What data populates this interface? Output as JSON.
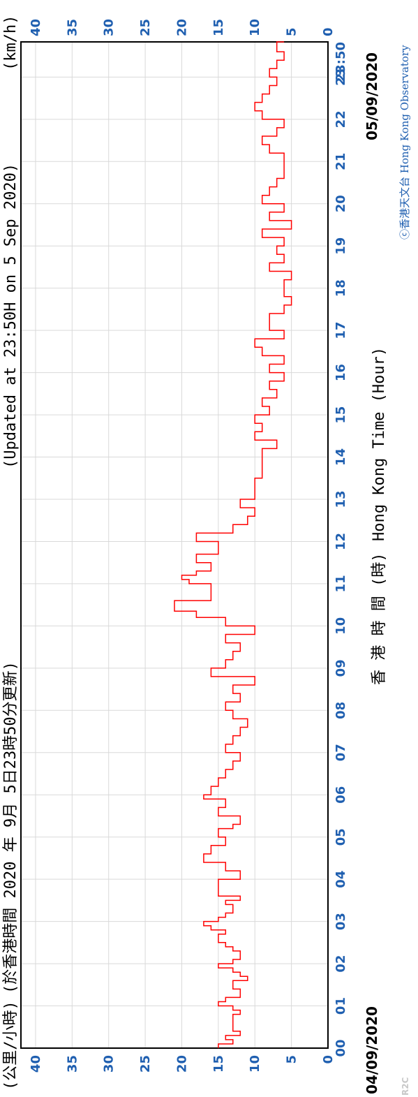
{
  "colors": {
    "accent": "#1f5fb0",
    "series": "#ff0000",
    "grid": "#d9d9d9",
    "frame": "#000000"
  },
  "header": {
    "left": "(公里/小時)",
    "middle": "(於香港時間 2020 年 9月 5日23時50分更新)",
    "right": "(Updated at 23:50H on 5 Sep 2020)",
    "unit": "(km/h)"
  },
  "footer": {
    "start_date": "04/09/2020",
    "end_date": "05/09/2020",
    "xlabel_zh": "香 港 時 間 (時)",
    "xlabel_en": "Hong Kong Time (Hour)",
    "copyright": "ⓒ香港天文台 Hong Kong Observatory",
    "corner_tag": "R2C"
  },
  "chart_data": {
    "type": "line",
    "title": "",
    "xlabel": "香 港 時 間 (時) Hong Kong Time (Hour)",
    "ylabel": "(公里/小時) (km/h)",
    "x_tick_labels": [
      "00",
      "01",
      "02",
      "03",
      "04",
      "05",
      "06",
      "07",
      "08",
      "09",
      "10",
      "11",
      "12",
      "13",
      "14",
      "15",
      "16",
      "17",
      "18",
      "19",
      "20",
      "21",
      "22",
      "23",
      "23:50"
    ],
    "y_tick_labels": [
      "0",
      "5",
      "10",
      "15",
      "20",
      "25",
      "30",
      "35",
      "40"
    ],
    "xlim": [
      0,
      23.833
    ],
    "ylim": [
      0,
      42
    ],
    "grid": true,
    "series": [
      {
        "x": [
          0.0,
          0.1,
          0.2,
          0.3,
          0.4,
          0.5,
          0.6,
          0.7,
          0.8,
          0.9,
          1.0,
          1.1,
          1.2,
          1.3,
          1.4,
          1.5,
          1.6,
          1.7,
          1.8,
          1.9,
          2.0,
          2.1,
          2.2,
          2.3,
          2.4,
          2.5,
          2.6,
          2.7,
          2.8,
          2.9,
          3.0,
          3.1,
          3.2,
          3.3,
          3.4,
          3.5,
          3.6,
          3.8,
          4.0,
          4.2,
          4.4,
          4.6,
          4.8,
          5.0,
          5.2,
          5.3,
          5.5,
          5.7,
          5.9,
          6.0,
          6.2,
          6.4,
          6.6,
          6.8,
          7.0,
          7.2,
          7.4,
          7.6,
          7.8,
          8.0,
          8.2,
          8.4,
          8.6,
          8.8,
          9.0,
          9.2,
          9.4,
          9.6,
          9.8,
          10.0,
          10.2,
          10.35,
          10.6,
          10.8,
          11.0,
          11.1,
          11.2,
          11.3,
          11.5,
          11.7,
          12.0,
          12.2,
          12.4,
          12.6,
          12.8,
          13.0,
          13.2,
          13.5,
          13.8,
          14.0,
          14.2,
          14.4,
          14.6,
          14.8,
          15.0,
          15.2,
          15.4,
          15.6,
          15.8,
          16.0,
          16.2,
          16.4,
          16.6,
          16.8,
          17.0,
          17.2,
          17.4,
          17.6,
          17.8,
          18.0,
          18.2,
          18.4,
          18.6,
          18.8,
          19.0,
          19.2,
          19.4,
          19.6,
          19.8,
          20.0,
          20.2,
          20.4,
          20.6,
          20.8,
          21.0,
          21.2,
          21.4,
          21.6,
          21.8,
          22.0,
          22.2,
          22.4,
          22.6,
          22.8,
          23.0,
          23.2,
          23.4,
          23.6,
          23.833
        ],
        "y": [
          15,
          13,
          14,
          12,
          13,
          13,
          13,
          13,
          12,
          13,
          15,
          14,
          12,
          12,
          13,
          13,
          11,
          12,
          13,
          15,
          13,
          12,
          12,
          13,
          14,
          15,
          15,
          14,
          16,
          17,
          15,
          14,
          13,
          13,
          14,
          12,
          15,
          15,
          12,
          14,
          17,
          16,
          14,
          15,
          13,
          12,
          15,
          14,
          17,
          16,
          15,
          14,
          13,
          12,
          14,
          13,
          12,
          11,
          13,
          14,
          12,
          13,
          10,
          16,
          14,
          13,
          12,
          14,
          10,
          14,
          18,
          21,
          16,
          16,
          19,
          20,
          18,
          16,
          18,
          15,
          18,
          13,
          11,
          10,
          12,
          10,
          10,
          9,
          9,
          9,
          7,
          10,
          9,
          10,
          8,
          9,
          7,
          8,
          6,
          8,
          6,
          9,
          10,
          6,
          8,
          8,
          6,
          5,
          6,
          6,
          5,
          8,
          6,
          7,
          6,
          9,
          5,
          8,
          6,
          9,
          8,
          7,
          6,
          6,
          6,
          8,
          9,
          7,
          6,
          9,
          10,
          9,
          8,
          7,
          8,
          7,
          6,
          7,
          6
        ],
        "step": true
      }
    ]
  }
}
